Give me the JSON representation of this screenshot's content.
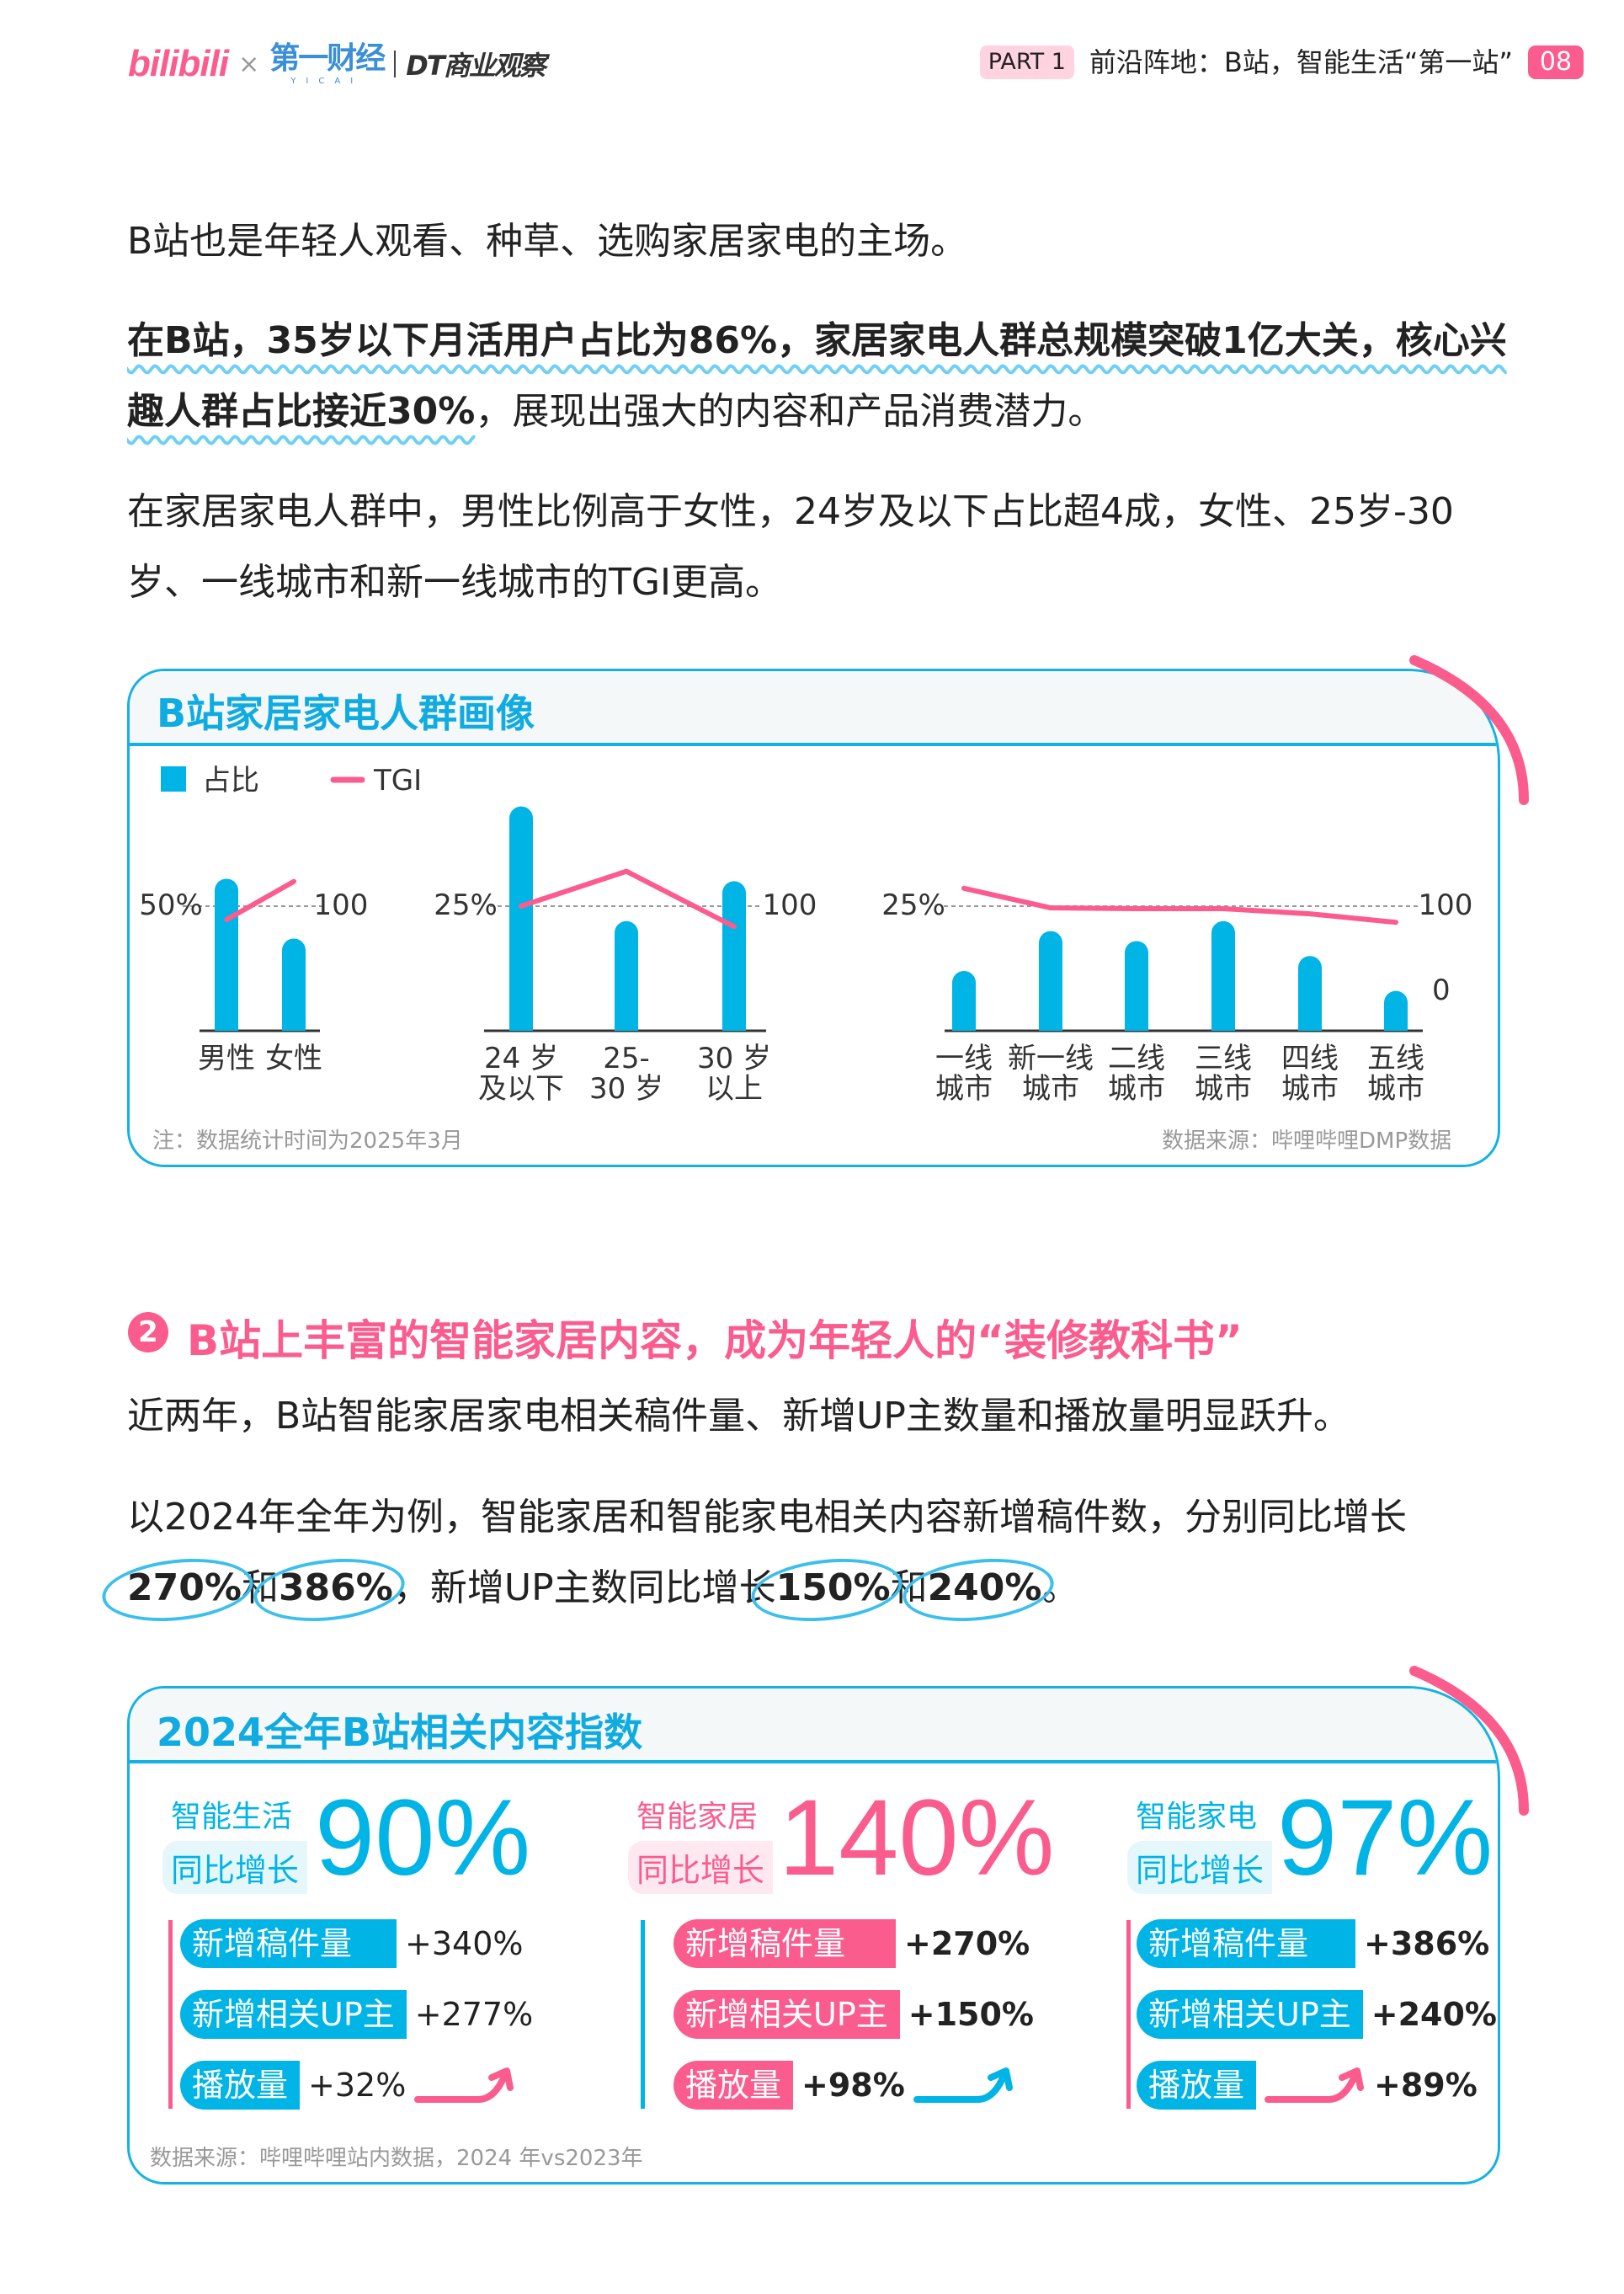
{
  "header": {
    "logo_bilibili": "bilibili",
    "logo_x": "×",
    "logo_yicai": "第一财经",
    "logo_yicai_en": "YICAI",
    "logo_dt": "DT商业观察",
    "part": "PART 1",
    "title": "前沿阵地：B站，智能生活“第一站”",
    "page": "08"
  },
  "intro": {
    "p1": "B站也是年轻人观看、种草、选购家居家电的主场。",
    "p2_bold": "在B站，35岁以下月活用户占比为86%，家居家电人群总规模突破1亿大关，核心兴趣人群占比接近30%",
    "p2_rest": "，展现出强大的内容和产品消费潜力。",
    "p3": "在家居家电人群中，男性比例高于女性，24岁及以下占比超4成，女性、25岁-30岁、一线城市和新一线城市的TGI更高。"
  },
  "colors": {
    "blue": "#00b4e6",
    "pink": "#fb5c8e"
  },
  "card1": {
    "title": "B站家居家电人群画像",
    "note": "注：数据统计时间为2025年3月",
    "source": "数据来源：哔哩哔哩DMP数据"
  },
  "chart_data": [
    {
      "type": "bar",
      "legend": [
        "占比",
        "TGI"
      ],
      "categories": [
        "男性",
        "女性"
      ],
      "series": [
        {
          "name": "占比",
          "values": [
            61,
            37
          ],
          "unit": "%"
        },
        {
          "name": "TGI",
          "type": "line",
          "values": [
            84,
            129
          ]
        }
      ],
      "ref_left": "50%",
      "ref_right": "100"
    },
    {
      "type": "bar",
      "categories": [
        "24 岁\n及以下",
        "25-\n30 岁",
        "30 岁\n以上"
      ],
      "series": [
        {
          "name": "占比",
          "values": [
            45,
            22,
            30
          ],
          "unit": "%"
        },
        {
          "name": "TGI",
          "type": "line",
          "values": [
            100,
            141,
            76
          ]
        }
      ],
      "ref_left": "25%",
      "ref_right": "100"
    },
    {
      "type": "bar",
      "categories": [
        "一线\n城市",
        "新一线\n城市",
        "二线\n城市",
        "三线\n城市",
        "四线\n城市",
        "五线\n城市"
      ],
      "series": [
        {
          "name": "占比",
          "values": [
            12,
            20,
            18,
            22,
            15,
            8
          ],
          "unit": "%"
        },
        {
          "name": "TGI",
          "type": "line",
          "values": [
            121,
            98,
            97,
            97,
            91,
            81
          ]
        }
      ],
      "ref_left": "25%",
      "ref_right": "100",
      "ref_right_zero": "0"
    }
  ],
  "section2": {
    "num": "2",
    "title": "B站上丰富的智能家居内容，成为年轻人的“装修教科书”",
    "p1": "近两年，B站智能家居家电相关稿件量、新增UP主数量和播放量明显跃升。",
    "p2a": "以2024年全年为例，智能家居和智能家电相关内容新增稿件数，分别同比增长",
    "v1": "270%",
    "and1": "和",
    "v2": "386%",
    "p2b": "，新增UP主数同比增长",
    "v3": "150%",
    "and2": "和",
    "v4": "240%",
    "end": "。"
  },
  "card2": {
    "title": "2024全年B站相关内容指数",
    "source": "数据来源：哔哩哔哩站内数据，2024 年vs2023年",
    "columns": [
      {
        "name": "智能生活",
        "sub": "同比增长",
        "value": "90%",
        "accent": "blue",
        "rows": [
          {
            "label": "新增稿件量",
            "value": "+340%"
          },
          {
            "label": "新增相关UP主",
            "value": "+277%"
          },
          {
            "label": "播放量",
            "value": "+32%"
          }
        ]
      },
      {
        "name": "智能家居",
        "sub": "同比增长",
        "value": "140%",
        "accent": "pink",
        "rows": [
          {
            "label": "新增稿件量",
            "value": "+270%"
          },
          {
            "label": "新增相关UP主",
            "value": "+150%"
          },
          {
            "label": "播放量",
            "value": "+98%"
          }
        ]
      },
      {
        "name": "智能家电",
        "sub": "同比增长",
        "value": "97%",
        "accent": "blue",
        "rows": [
          {
            "label": "新增稿件量",
            "value": "+386%"
          },
          {
            "label": "新增相关UP主",
            "value": "+240%"
          },
          {
            "label": "播放量",
            "value": "+89%"
          }
        ]
      }
    ]
  }
}
